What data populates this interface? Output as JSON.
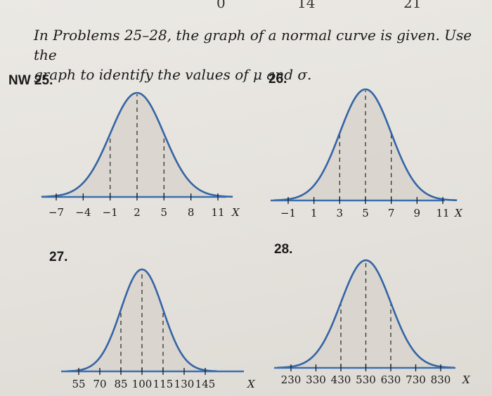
{
  "header_fragments": [
    "0",
    "14",
    "21"
  ],
  "instructions": {
    "line1": "In Problems 25–28, the graph of a normal curve is given. Use the",
    "line2": "graph to identify the values of μ and σ."
  },
  "colors": {
    "curve": "#3465a4",
    "fill": "#d8d3cd",
    "axis": "#3b6fb0",
    "dash": "#333333",
    "text": "#1a1a1a"
  },
  "chart_data": [
    {
      "type": "line",
      "problem": "NW 25.",
      "axis_var": "X",
      "ticks": [
        -7,
        -4,
        -1,
        2,
        5,
        8,
        11
      ],
      "tick_labels": [
        "−7",
        "−4",
        "−1",
        "2",
        "5",
        "8",
        "11"
      ],
      "dashed_at": [
        -1,
        2,
        5
      ],
      "mu": 2,
      "sigma": 3
    },
    {
      "type": "line",
      "problem": "26.",
      "axis_var": "X",
      "ticks": [
        -1,
        1,
        3,
        5,
        7,
        9,
        11
      ],
      "tick_labels": [
        "−1",
        "1",
        "3",
        "5",
        "7",
        "9",
        "11"
      ],
      "dashed_at": [
        3,
        5,
        7
      ],
      "mu": 5,
      "sigma": 2
    },
    {
      "type": "line",
      "problem": "27.",
      "axis_var": "X",
      "ticks": [
        55,
        70,
        85,
        100,
        115,
        130,
        145
      ],
      "tick_labels": [
        "55",
        "70",
        "85",
        "100",
        "115",
        "130",
        "145"
      ],
      "dashed_at": [
        85,
        100,
        115
      ],
      "mu": 100,
      "sigma": 15
    },
    {
      "type": "line",
      "problem": "28.",
      "axis_var": "X",
      "ticks": [
        230,
        330,
        430,
        530,
        630,
        730,
        830
      ],
      "tick_labels": [
        "230",
        "330",
        "430",
        "530",
        "630",
        "730",
        "830"
      ],
      "dashed_at": [
        430,
        530,
        630
      ],
      "mu": 530,
      "sigma": 100
    }
  ]
}
